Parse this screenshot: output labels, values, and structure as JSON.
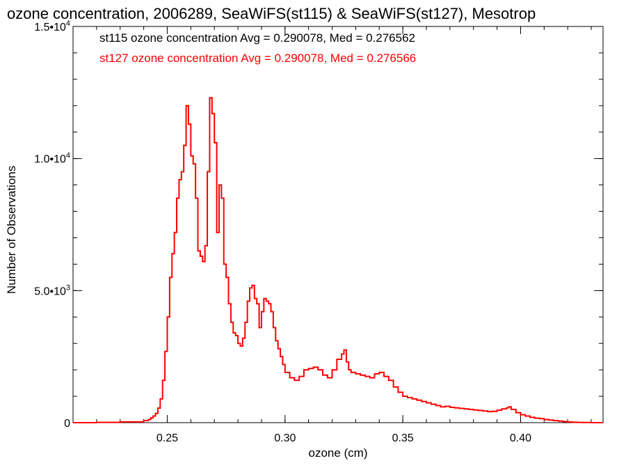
{
  "chart_data": {
    "type": "line",
    "title": "ozone concentration, 2006289, SeaWiFS(st115) & SeaWiFS(st127), Mesotrop",
    "xlabel": "ozone (cm)",
    "ylabel": "Number of Observations",
    "xlim": [
      0.21,
      0.435
    ],
    "ylim": [
      0,
      15000
    ],
    "x_ticks": [
      {
        "value": 0.25,
        "label": "0.25"
      },
      {
        "value": 0.3,
        "label": "0.30"
      },
      {
        "value": 0.35,
        "label": "0.35"
      },
      {
        "value": 0.4,
        "label": "0.40"
      }
    ],
    "y_ticks": [
      {
        "value": 0,
        "mantissa": "0",
        "exponent": ""
      },
      {
        "value": 5000,
        "mantissa": "5.0•10",
        "exponent": "3"
      },
      {
        "value": 10000,
        "mantissa": "1.0•10",
        "exponent": "4"
      },
      {
        "value": 15000,
        "mantissa": "1.5•10",
        "exponent": "4"
      }
    ],
    "annotations": [
      {
        "text": "st115 ozone concentration Avg = 0.290078, Med = 0.276562",
        "color": "#000000"
      },
      {
        "text": "st127 ozone concentration Avg = 0.290078, Med = 0.276566",
        "color": "#ff0000"
      }
    ],
    "series": [
      {
        "color": "#ff0000",
        "x": [
          0.21,
          0.22,
          0.23,
          0.24,
          0.242,
          0.243,
          0.244,
          0.245,
          0.246,
          0.247,
          0.248,
          0.249,
          0.25,
          0.251,
          0.252,
          0.253,
          0.254,
          0.255,
          0.256,
          0.257,
          0.258,
          0.259,
          0.26,
          0.261,
          0.262,
          0.263,
          0.264,
          0.265,
          0.266,
          0.267,
          0.268,
          0.269,
          0.27,
          0.271,
          0.272,
          0.273,
          0.274,
          0.275,
          0.276,
          0.277,
          0.278,
          0.279,
          0.28,
          0.281,
          0.282,
          0.283,
          0.284,
          0.285,
          0.286,
          0.287,
          0.288,
          0.289,
          0.29,
          0.291,
          0.292,
          0.293,
          0.294,
          0.295,
          0.296,
          0.297,
          0.298,
          0.299,
          0.3,
          0.302,
          0.304,
          0.306,
          0.308,
          0.31,
          0.312,
          0.314,
          0.316,
          0.318,
          0.32,
          0.322,
          0.324,
          0.325,
          0.326,
          0.327,
          0.328,
          0.33,
          0.332,
          0.334,
          0.336,
          0.338,
          0.34,
          0.342,
          0.344,
          0.346,
          0.348,
          0.35,
          0.352,
          0.354,
          0.356,
          0.358,
          0.36,
          0.362,
          0.364,
          0.366,
          0.368,
          0.37,
          0.372,
          0.374,
          0.376,
          0.378,
          0.38,
          0.382,
          0.384,
          0.386,
          0.388,
          0.39,
          0.392,
          0.394,
          0.395,
          0.396,
          0.398,
          0.4,
          0.402,
          0.404,
          0.406,
          0.408,
          0.41,
          0.412,
          0.414,
          0.416,
          0.418,
          0.42,
          0.422,
          0.424,
          0.426,
          0.43
        ],
        "y": [
          0,
          10,
          30,
          80,
          120,
          180,
          250,
          350,
          550,
          900,
          1600,
          2700,
          4000,
          5500,
          6400,
          7200,
          8500,
          9200,
          9500,
          10500,
          12000,
          11300,
          10100,
          9800,
          8500,
          6500,
          6300,
          6100,
          6700,
          9500,
          12300,
          11700,
          10600,
          7200,
          9000,
          8500,
          6000,
          5500,
          4500,
          3800,
          3400,
          3300,
          3000,
          2900,
          3200,
          3800,
          4600,
          5100,
          5200,
          4700,
          4500,
          3600,
          4200,
          4700,
          4600,
          4500,
          4200,
          3600,
          3100,
          2800,
          2500,
          2200,
          1900,
          1700,
          1600,
          1750,
          2000,
          2050,
          2100,
          2000,
          1800,
          1700,
          2000,
          2400,
          2600,
          2750,
          2300,
          2000,
          1900,
          1850,
          1800,
          1750,
          1700,
          1850,
          1900,
          1750,
          1600,
          1350,
          1150,
          1000,
          950,
          900,
          850,
          800,
          750,
          700,
          650,
          600,
          620,
          580,
          560,
          540,
          520,
          500,
          480,
          460,
          440,
          420,
          430,
          470,
          520,
          560,
          600,
          500,
          380,
          300,
          250,
          200,
          170,
          150,
          120,
          100,
          80,
          60,
          40,
          25,
          15,
          10,
          5,
          0
        ]
      }
    ]
  }
}
